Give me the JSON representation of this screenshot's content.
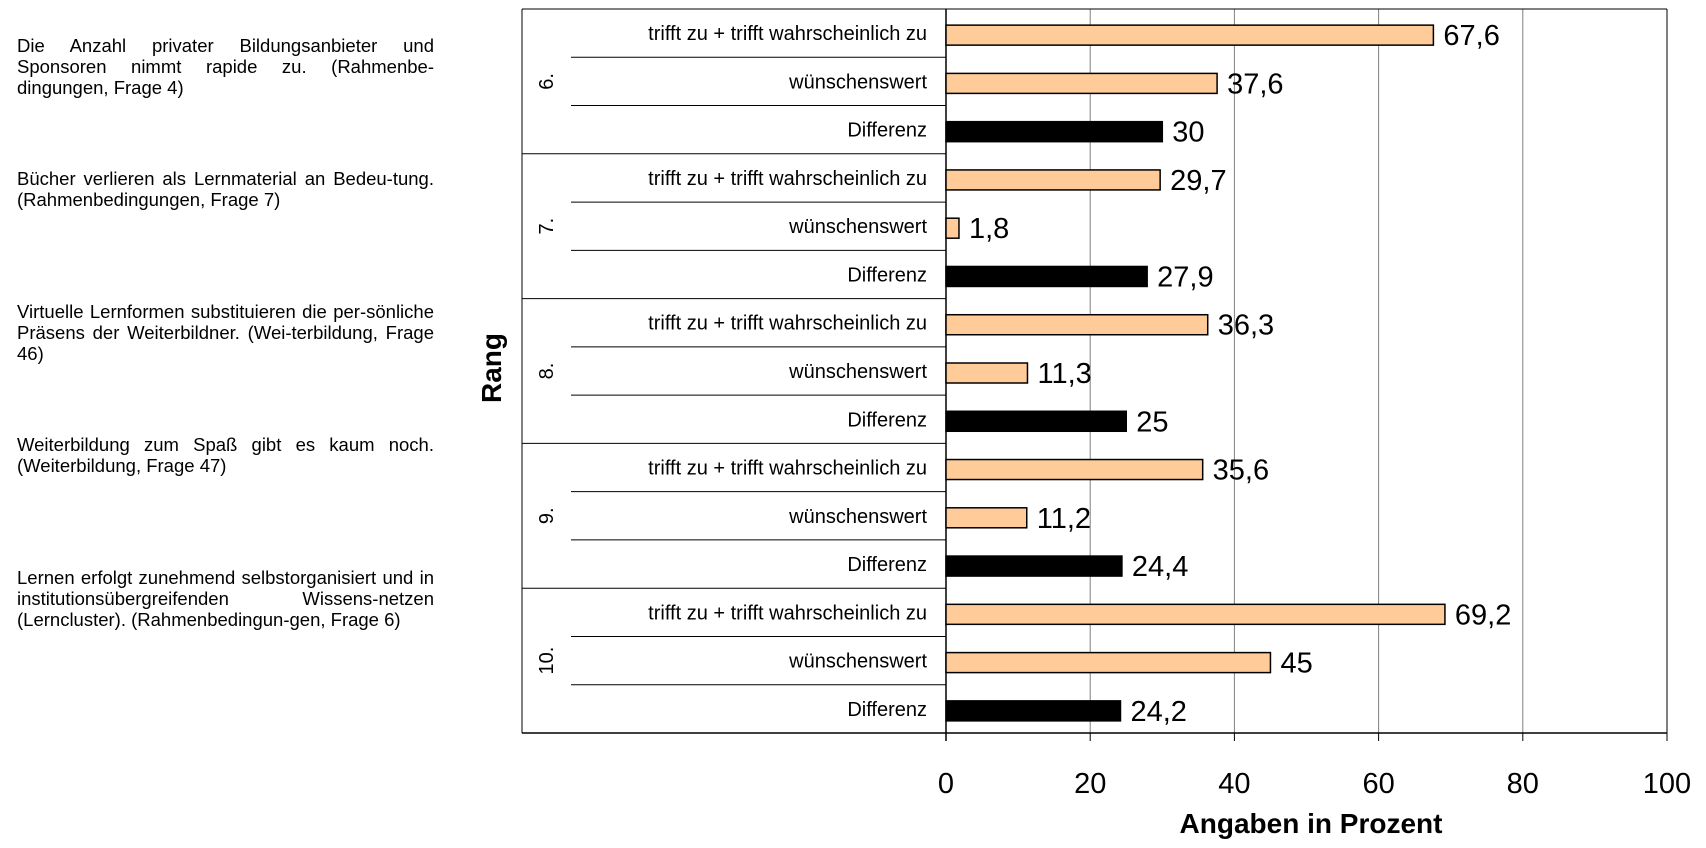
{
  "descriptions": [
    "Die Anzahl privater Bildungsanbieter und Sponsoren nimmt rapide zu. (Rahmenbe-dingungen, Frage 4)",
    "Bücher verlieren als Lernmaterial an Bedeu-tung. (Rahmenbedingungen, Frage 7)",
    "Virtuelle Lernformen substituieren die per-sönliche Präsens der Weiterbildner. (Wei-terbildung, Frage 46)",
    "Weiterbildung zum Spaß gibt es kaum noch. (Weiterbildung, Frage 47)",
    "Lernen erfolgt zunehmend selbstorganisiert und in institutionsübergreifenden Wissens-netzen (Lerncluster). (Rahmenbedingun-gen, Frage 6)"
  ],
  "chart_data": {
    "type": "bar",
    "orientation": "horizontal",
    "xlabel": "Angaben in Prozent",
    "ylabel": "Rang",
    "xlim": [
      0,
      100
    ],
    "xticks": [
      "0",
      "20",
      "40",
      "60",
      "80",
      "100"
    ],
    "grid": "vertical",
    "groups": [
      {
        "label": "6.",
        "bars": [
          {
            "category": "trifft zu + trifft wahrscheinlich zu",
            "value": 67.6,
            "value_label": "67,6"
          },
          {
            "category": "wünschenswert",
            "value": 37.6,
            "value_label": "37,6"
          },
          {
            "category": "Differenz",
            "value": 30,
            "value_label": "30"
          }
        ]
      },
      {
        "label": "7.",
        "bars": [
          {
            "category": "trifft zu + trifft wahrscheinlich zu",
            "value": 29.7,
            "value_label": "29,7"
          },
          {
            "category": "wünschenswert",
            "value": 1.8,
            "value_label": "1,8"
          },
          {
            "category": "Differenz",
            "value": 27.9,
            "value_label": "27,9"
          }
        ]
      },
      {
        "label": "8.",
        "bars": [
          {
            "category": "trifft zu + trifft wahrscheinlich zu",
            "value": 36.3,
            "value_label": "36,3"
          },
          {
            "category": "wünschenswert",
            "value": 11.3,
            "value_label": "11,3"
          },
          {
            "category": "Differenz",
            "value": 25,
            "value_label": "25"
          }
        ]
      },
      {
        "label": "9.",
        "bars": [
          {
            "category": "trifft zu + trifft wahrscheinlich zu",
            "value": 35.6,
            "value_label": "35,6"
          },
          {
            "category": "wünschenswert",
            "value": 11.2,
            "value_label": "11,2"
          },
          {
            "category": "Differenz",
            "value": 24.4,
            "value_label": "24,4"
          }
        ]
      },
      {
        "label": "10.",
        "bars": [
          {
            "category": "trifft zu + trifft wahrscheinlich zu",
            "value": 69.2,
            "value_label": "69,2"
          },
          {
            "category": "wünschenswert",
            "value": 45,
            "value_label": "45"
          },
          {
            "category": "Differenz",
            "value": 24.2,
            "value_label": "24,2"
          }
        ]
      }
    ],
    "colors": {
      "trifft zu + trifft wahrscheinlich zu": "#ffcc99",
      "wünschenswert": "#ffcc99",
      "Differenz": "#000000"
    }
  }
}
